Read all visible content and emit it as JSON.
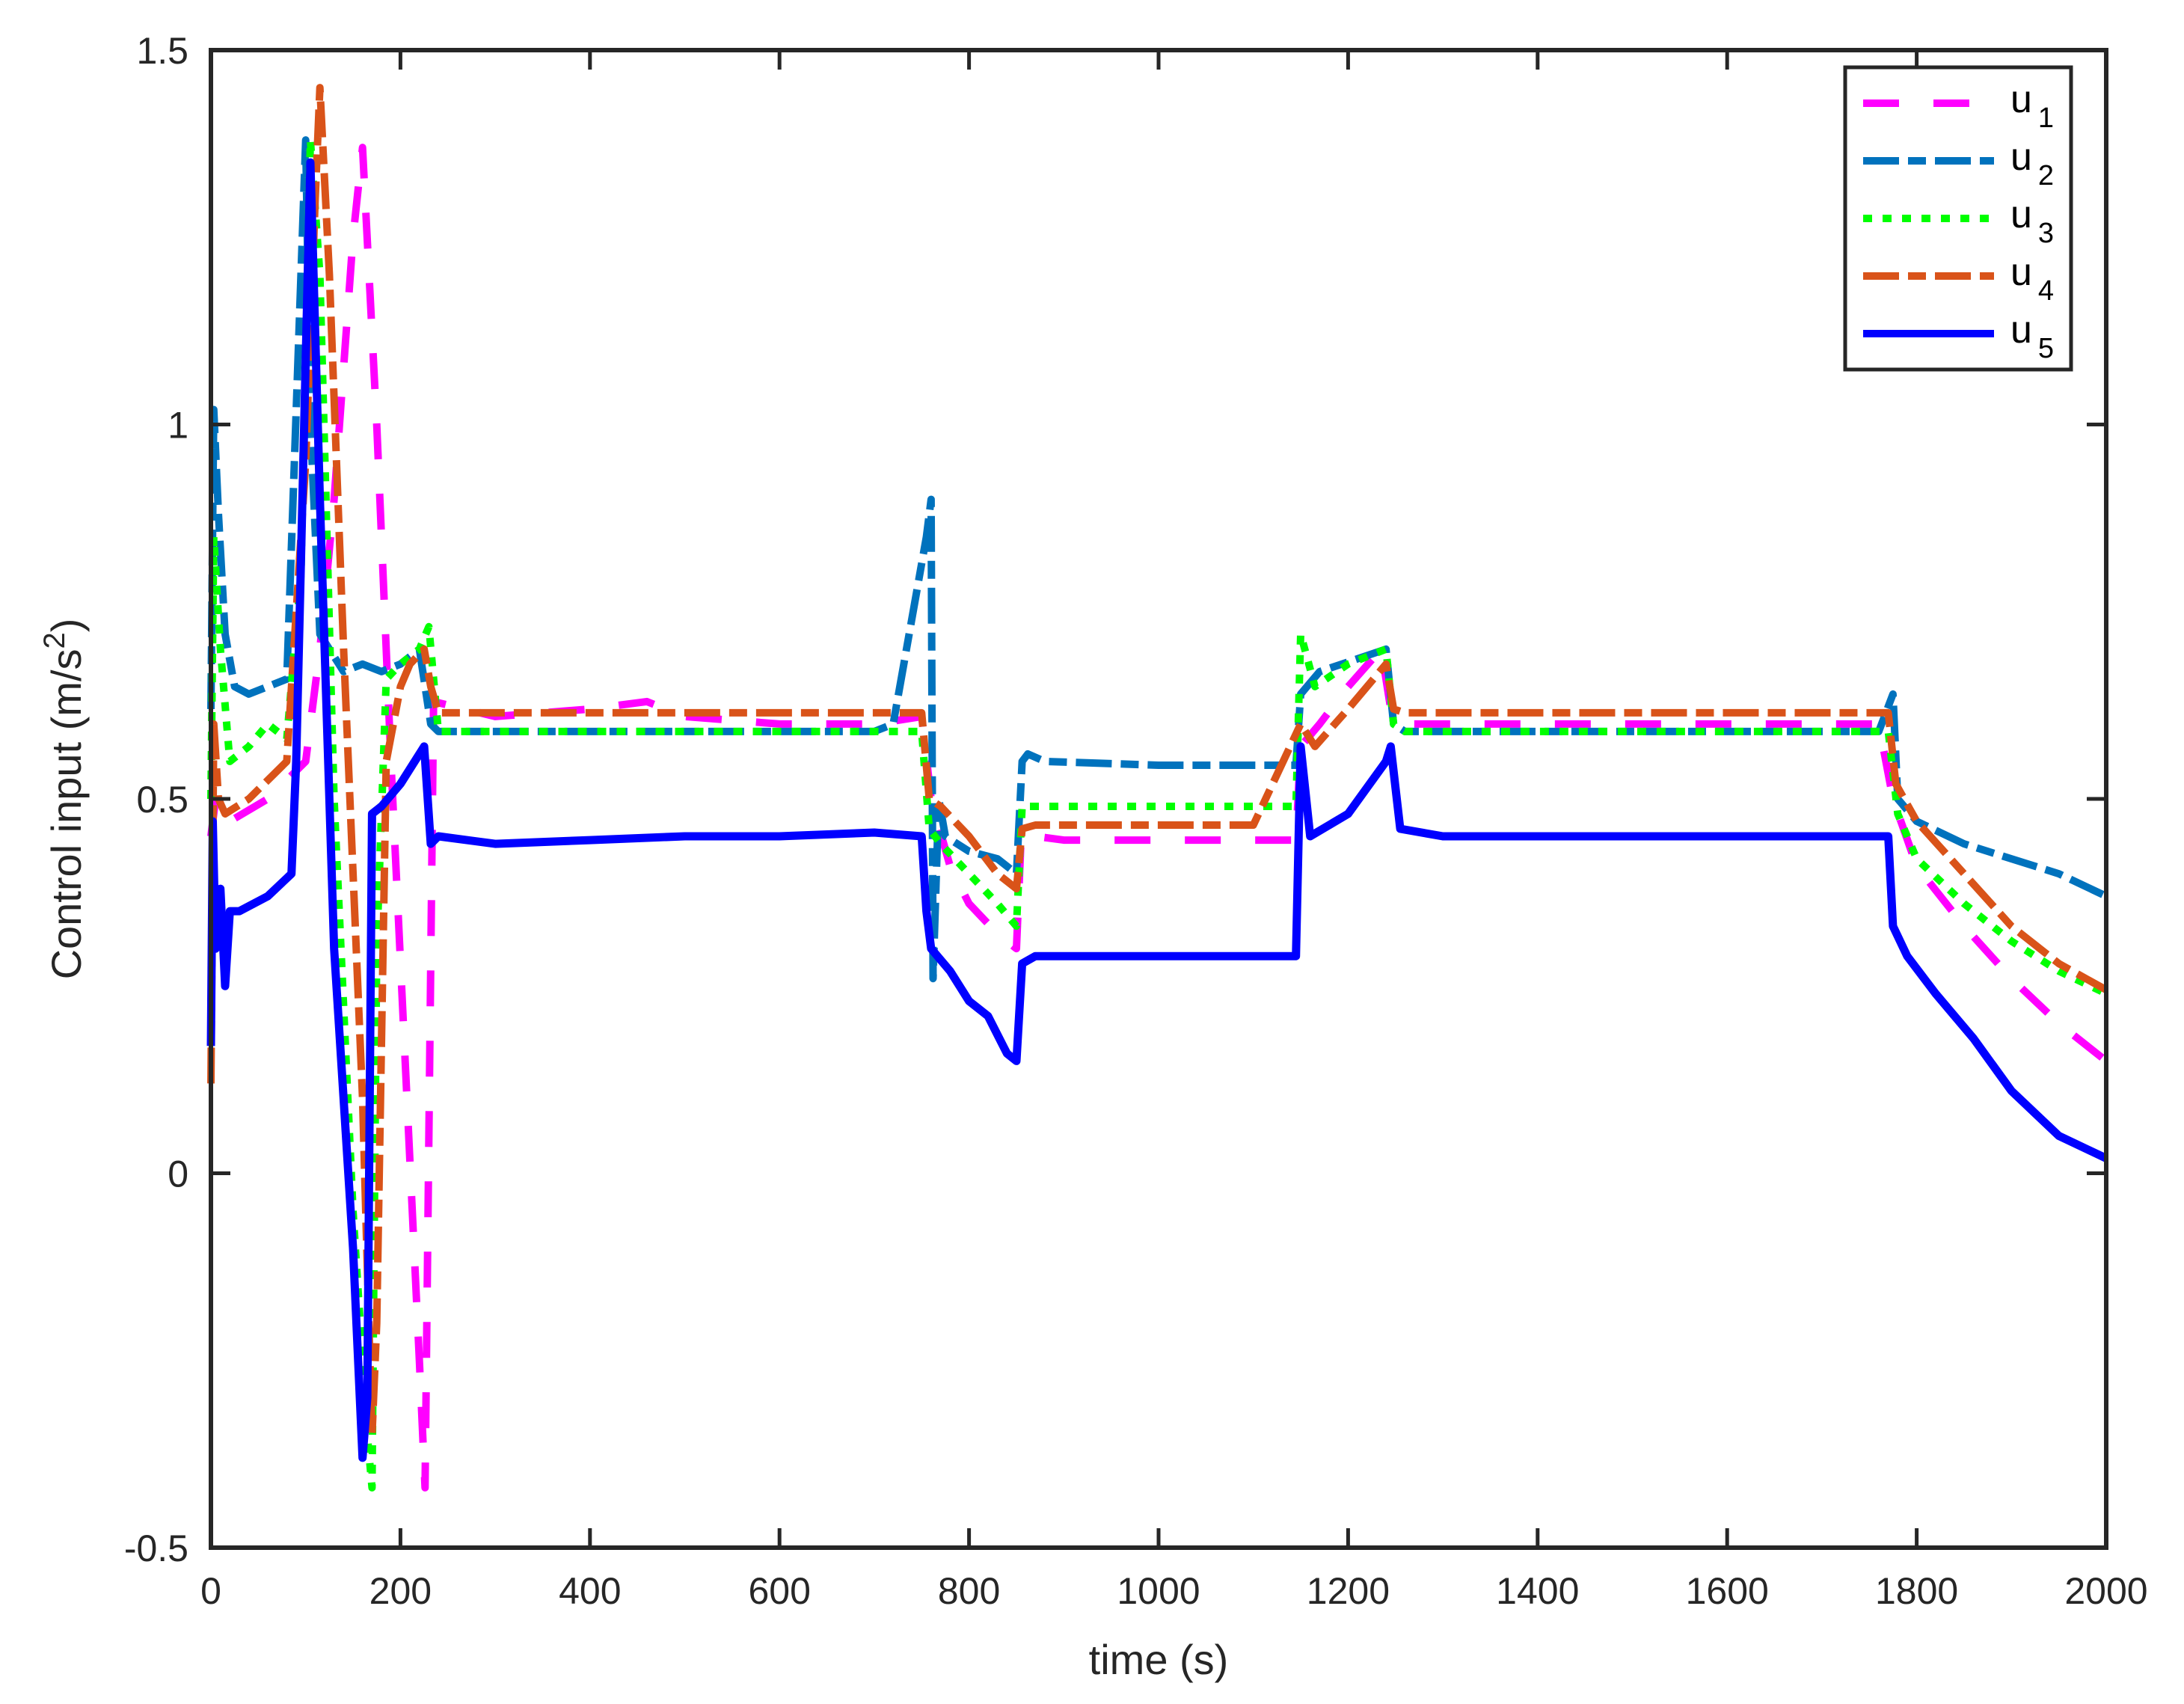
{
  "chart_data": {
    "type": "line",
    "title": "",
    "xlabel": "time (s)",
    "ylabel": "Control input (m/s^2)",
    "ylabel_parts": {
      "main": "Control input (m/s",
      "sup": "2",
      "close": ")"
    },
    "xlim": [
      0,
      2000
    ],
    "ylim": [
      -0.5,
      1.5
    ],
    "xticks": [
      0,
      200,
      400,
      600,
      800,
      1000,
      1200,
      1400,
      1600,
      1800,
      2000
    ],
    "xtick_labels": [
      "0",
      "200",
      "400",
      "600",
      "800",
      "1000",
      "1200",
      "1400",
      "1600",
      "1800",
      "2000"
    ],
    "yticks": [
      -0.5,
      0,
      0.5,
      1,
      1.5
    ],
    "ytick_labels": [
      "-0.5",
      "0",
      "0.5",
      "1",
      "1.5"
    ],
    "grid": false,
    "legend_position": "upper right",
    "series": [
      {
        "name": "u1",
        "label_base": "u",
        "label_sub": "1",
        "color": "#FF00FF",
        "style": "dashed",
        "x": [
          0,
          5,
          20,
          60,
          100,
          115,
          130,
          150,
          160,
          175,
          190,
          205,
          220,
          226,
          235,
          300,
          400,
          460,
          500,
          600,
          700,
          750,
          760,
          780,
          800,
          830,
          850,
          855,
          870,
          900,
          1000,
          1100,
          1145,
          1150,
          1170,
          1200,
          1235,
          1245,
          1260,
          1300,
          1400,
          1600,
          1760,
          1775,
          1800,
          1850,
          1900,
          1950,
          2000
        ],
        "y": [
          0.45,
          0.5,
          0.47,
          0.5,
          0.55,
          0.7,
          0.9,
          1.25,
          1.37,
          1.0,
          0.55,
          0.15,
          -0.25,
          -0.42,
          0.63,
          0.61,
          0.62,
          0.63,
          0.61,
          0.6,
          0.6,
          0.61,
          0.5,
          0.41,
          0.36,
          0.32,
          0.3,
          0.45,
          0.45,
          0.445,
          0.445,
          0.445,
          0.445,
          0.57,
          0.6,
          0.65,
          0.7,
          0.62,
          0.6,
          0.6,
          0.6,
          0.6,
          0.6,
          0.5,
          0.41,
          0.33,
          0.26,
          0.2,
          0.15
        ]
      },
      {
        "name": "u2",
        "label_base": "u",
        "label_sub": "2",
        "color": "#0072BD",
        "style": "dashdot",
        "x": [
          0,
          3,
          8,
          15,
          25,
          40,
          80,
          100,
          105,
          115,
          125,
          140,
          160,
          180,
          200,
          220,
          232,
          240,
          300,
          500,
          700,
          720,
          755,
          760,
          762,
          768,
          775,
          800,
          830,
          850,
          856,
          862,
          880,
          1000,
          1145,
          1150,
          1170,
          1240,
          1248,
          1260,
          1300,
          1760,
          1775,
          1780,
          1800,
          1850,
          1900,
          1950,
          2000
        ],
        "y": [
          0.62,
          1.02,
          0.88,
          0.72,
          0.65,
          0.64,
          0.66,
          1.38,
          1.0,
          0.72,
          0.7,
          0.67,
          0.68,
          0.67,
          0.68,
          0.7,
          0.6,
          0.59,
          0.59,
          0.59,
          0.59,
          0.6,
          0.85,
          0.9,
          0.26,
          0.5,
          0.45,
          0.43,
          0.42,
          0.4,
          0.55,
          0.56,
          0.55,
          0.545,
          0.545,
          0.64,
          0.67,
          0.7,
          0.6,
          0.59,
          0.59,
          0.59,
          0.64,
          0.5,
          0.47,
          0.44,
          0.42,
          0.4,
          0.37
        ]
      },
      {
        "name": "u3",
        "label_base": "u",
        "label_sub": "3",
        "color": "#00FF00",
        "style": "dotted",
        "x": [
          0,
          3,
          10,
          20,
          40,
          60,
          80,
          95,
          105,
          115,
          130,
          150,
          165,
          170,
          175,
          185,
          200,
          220,
          230,
          240,
          300,
          500,
          750,
          758,
          770,
          800,
          830,
          850,
          856,
          870,
          1000,
          1145,
          1150,
          1165,
          1200,
          1240,
          1248,
          1260,
          1300,
          1770,
          1780,
          1800,
          1850,
          1900,
          1950,
          2000
        ],
        "y": [
          0.5,
          0.85,
          0.7,
          0.55,
          0.57,
          0.6,
          0.58,
          0.8,
          1.38,
          1.2,
          0.5,
          -0.05,
          -0.35,
          -0.42,
          0.3,
          0.66,
          0.68,
          0.7,
          0.73,
          0.59,
          0.59,
          0.59,
          0.59,
          0.46,
          0.44,
          0.4,
          0.36,
          0.33,
          0.49,
          0.49,
          0.49,
          0.49,
          0.72,
          0.65,
          0.68,
          0.7,
          0.6,
          0.59,
          0.59,
          0.59,
          0.48,
          0.42,
          0.36,
          0.31,
          0.27,
          0.24
        ]
      },
      {
        "name": "u4",
        "label_base": "u",
        "label_sub": "4",
        "color": "#D95319",
        "style": "dashdot",
        "x": [
          0,
          3,
          8,
          15,
          40,
          80,
          100,
          110,
          115,
          125,
          140,
          160,
          170,
          175,
          185,
          200,
          210,
          225,
          232,
          240,
          300,
          500,
          750,
          758,
          770,
          800,
          830,
          850,
          856,
          870,
          1000,
          1100,
          1150,
          1165,
          1200,
          1240,
          1248,
          1260,
          1300,
          1770,
          1778,
          1800,
          1850,
          1900,
          1950,
          2000
        ],
        "y": [
          0.12,
          0.6,
          0.5,
          0.48,
          0.5,
          0.55,
          0.95,
          1.3,
          1.45,
          1.2,
          0.7,
          0.1,
          -0.35,
          -0.2,
          0.55,
          0.65,
          0.68,
          0.7,
          0.65,
          0.615,
          0.615,
          0.615,
          0.615,
          0.5,
          0.49,
          0.45,
          0.4,
          0.38,
          0.46,
          0.465,
          0.465,
          0.465,
          0.6,
          0.57,
          0.62,
          0.68,
          0.62,
          0.615,
          0.615,
          0.615,
          0.52,
          0.47,
          0.4,
          0.33,
          0.28,
          0.245
        ]
      },
      {
        "name": "u5",
        "label_base": "u",
        "label_sub": "5",
        "color": "#0000FF",
        "style": "solid",
        "x": [
          0,
          2,
          5,
          10,
          15,
          20,
          30,
          60,
          85,
          90,
          105,
          115,
          130,
          150,
          160,
          165,
          170,
          180,
          200,
          225,
          232,
          240,
          300,
          400,
          500,
          600,
          700,
          750,
          755,
          760,
          780,
          800,
          820,
          840,
          850,
          856,
          870,
          1000,
          1145,
          1150,
          1160,
          1200,
          1240,
          1245,
          1255,
          1300,
          1400,
          1600,
          1770,
          1775,
          1790,
          1820,
          1860,
          1900,
          1950,
          2000
        ],
        "y": [
          0.17,
          0.47,
          0.3,
          0.38,
          0.25,
          0.35,
          0.35,
          0.37,
          0.4,
          0.55,
          1.35,
          0.9,
          0.3,
          -0.1,
          -0.38,
          -0.3,
          0.48,
          0.49,
          0.52,
          0.57,
          0.44,
          0.45,
          0.44,
          0.445,
          0.45,
          0.45,
          0.455,
          0.45,
          0.35,
          0.3,
          0.27,
          0.23,
          0.21,
          0.16,
          0.15,
          0.28,
          0.29,
          0.29,
          0.29,
          0.57,
          0.45,
          0.48,
          0.55,
          0.57,
          0.46,
          0.45,
          0.45,
          0.45,
          0.45,
          0.33,
          0.29,
          0.24,
          0.18,
          0.11,
          0.05,
          0.02
        ]
      }
    ]
  }
}
